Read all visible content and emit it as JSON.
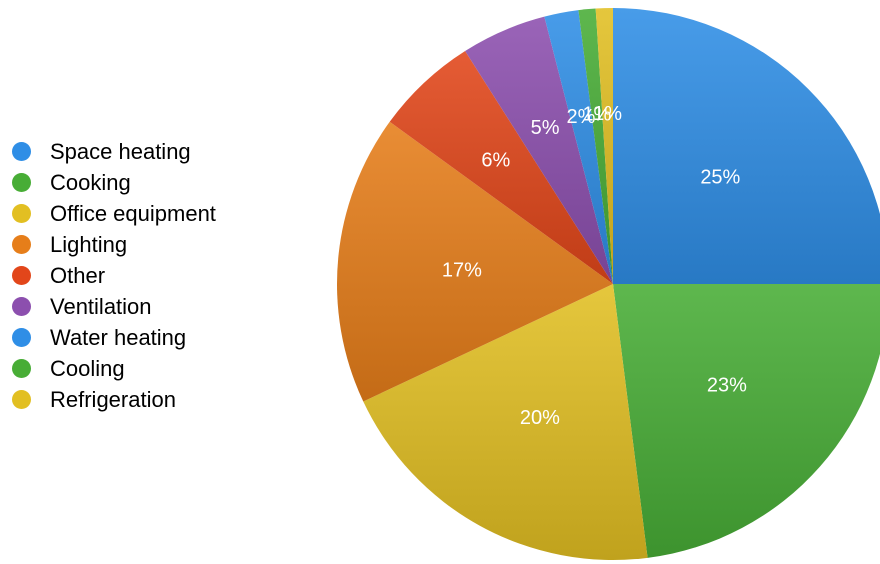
{
  "chart_data": {
    "type": "pie",
    "categories": [
      "Space heating",
      "Cooking",
      "Refrigeration",
      "Lighting",
      "Other",
      "Ventilation",
      "Water heating",
      "Cooling",
      "Office equipment"
    ],
    "values": [
      25,
      23,
      20,
      17,
      6,
      5,
      2,
      1,
      1
    ],
    "labels": [
      "25%",
      "23%",
      "20%",
      "17%",
      "6%",
      "5%",
      "2%",
      "1%",
      "1%"
    ],
    "colors": [
      "#2f8ee6",
      "#48ad36",
      "#e2bf22",
      "#e67e1a",
      "#e2461a",
      "#8c4fae",
      "#2f8ee6",
      "#48ad36",
      "#e2bf22"
    ],
    "legend_position": "left"
  },
  "legend": [
    {
      "label": "Space heating",
      "color": "#2f8ee6"
    },
    {
      "label": "Cooking",
      "color": "#48ad36"
    },
    {
      "label": "Office equipment",
      "color": "#e2bf22"
    },
    {
      "label": "Lighting",
      "color": "#e67e1a"
    },
    {
      "label": "Other",
      "color": "#e2461a"
    },
    {
      "label": "Ventilation",
      "color": "#8c4fae"
    },
    {
      "label": "Water heating",
      "color": "#2f8ee6"
    },
    {
      "label": "Cooling",
      "color": "#48ad36"
    },
    {
      "label": "Refrigeration",
      "color": "#e2bf22"
    }
  ]
}
